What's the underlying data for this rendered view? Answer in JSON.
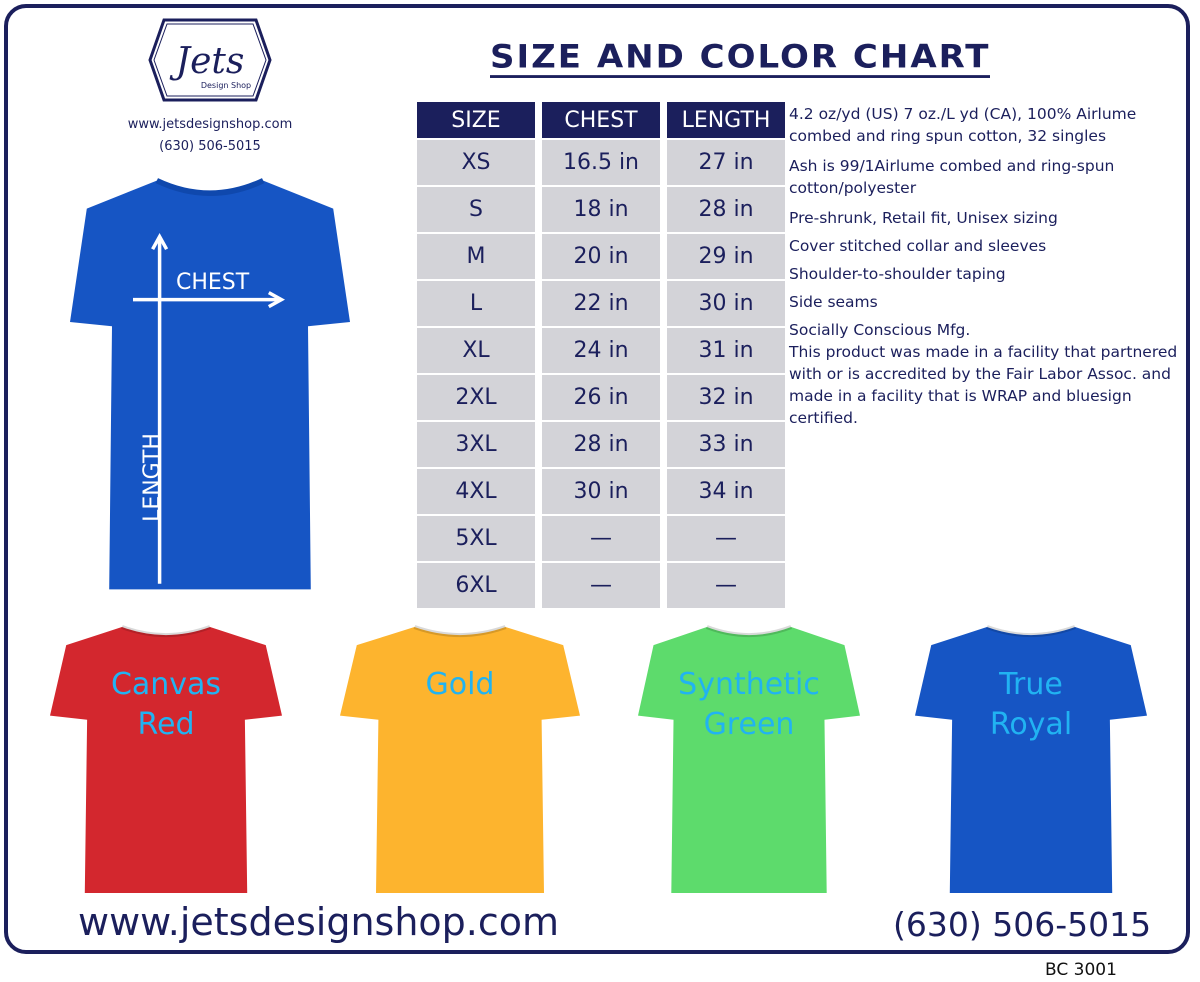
{
  "logo": {
    "brand": "Jets",
    "sub": "Design Shop"
  },
  "header": {
    "url": "www.jetsdesignshop.com",
    "phone": "(630) 506-5015",
    "title": "SIZE AND COLOR CHART"
  },
  "size_table": {
    "headers": [
      "SIZE",
      "CHEST",
      "LENGTH"
    ],
    "rows": [
      [
        "XS",
        "16.5 in",
        "27 in"
      ],
      [
        "S",
        "18 in",
        "28 in"
      ],
      [
        "M",
        "20 in",
        "29 in"
      ],
      [
        "L",
        "22 in",
        "30 in"
      ],
      [
        "XL",
        "24 in",
        "31 in"
      ],
      [
        "2XL",
        "26 in",
        "32 in"
      ],
      [
        "3XL",
        "28 in",
        "33 in"
      ],
      [
        "4XL",
        "30 in",
        "34 in"
      ],
      [
        "5XL",
        "—",
        "—"
      ],
      [
        "6XL",
        "—",
        "—"
      ]
    ]
  },
  "notes": [
    "4.2 oz/yd (US) 7 oz./L yd (CA), 100% Airlume combed and ring spun cotton, 32 singles",
    "Ash is 99/1Airlume combed and ring-spun cotton/polyester",
    "Pre-shrunk, Retail fit, Unisex sizing",
    "Cover stitched collar and sleeves",
    "Shoulder-to-shoulder taping",
    "Side seams",
    "Socially Conscious Mfg.",
    "This product was made in a facility that partnered with or is accredited by the Fair Labor Assoc. and made in a facility that is WRAP and bluesign certified."
  ],
  "diagram": {
    "chest_label": "CHEST",
    "length_label": "LENGTH",
    "shirt_color": "#1655c4"
  },
  "colors": [
    {
      "line1": "Canvas",
      "line2": "Red",
      "hex": "#d3272e"
    },
    {
      "line1": "Gold",
      "line2": "",
      "hex": "#fdb42e"
    },
    {
      "line1": "Synthetic",
      "line2": "Green",
      "hex": "#5ddb6c"
    },
    {
      "line1": "True",
      "line2": "Royal",
      "hex": "#1655c4"
    }
  ],
  "footer": {
    "url": "www.jetsdesignshop.com",
    "phone": "(630) 506-5015",
    "code": "BC 3001"
  }
}
